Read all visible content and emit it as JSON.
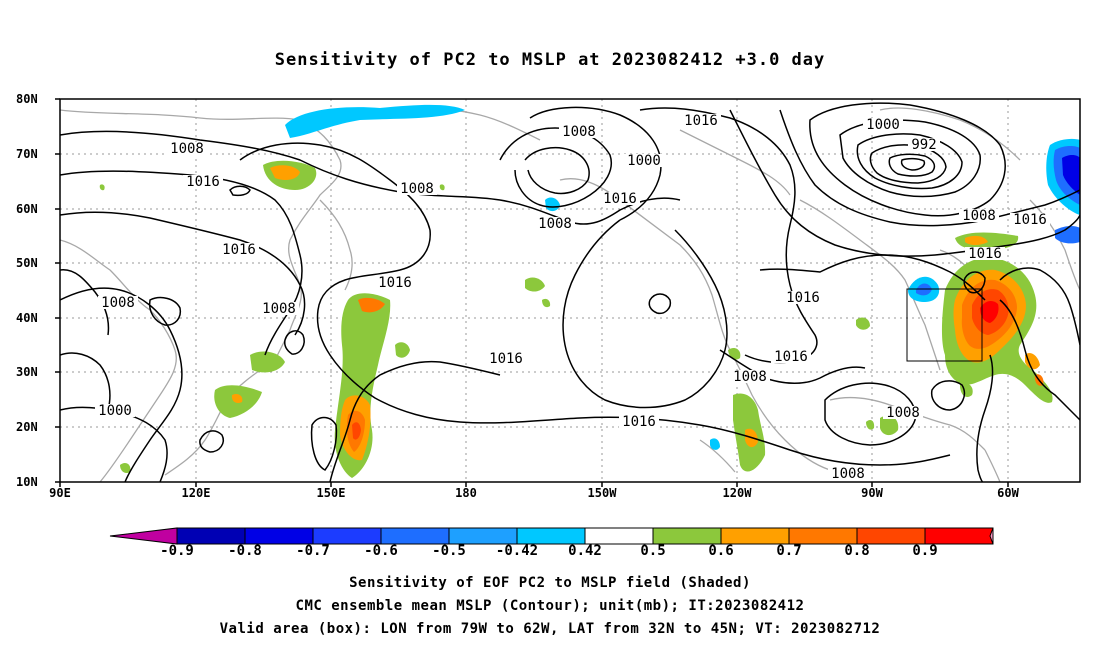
{
  "title": "Sensitivity of PC2 to MSLP at 2023082412 +3.0 day",
  "lat_labels": [
    "80N",
    "70N",
    "60N",
    "50N",
    "40N",
    "30N",
    "20N",
    "10N"
  ],
  "lon_labels": [
    "90E",
    "120E",
    "150E",
    "180",
    "150W",
    "120W",
    "90W",
    "60W"
  ],
  "contour_labels": [
    {
      "text": "1008"
    },
    {
      "text": "1016"
    },
    {
      "text": "1016"
    },
    {
      "text": "1008"
    },
    {
      "text": "1008"
    },
    {
      "text": "1000"
    },
    {
      "text": "1008"
    },
    {
      "text": "1016"
    },
    {
      "text": "1016"
    },
    {
      "text": "1008"
    },
    {
      "text": "1016"
    },
    {
      "text": "1016"
    },
    {
      "text": "1016"
    },
    {
      "text": "1000"
    },
    {
      "text": "992"
    },
    {
      "text": "1008"
    },
    {
      "text": "1016"
    },
    {
      "text": "1016"
    },
    {
      "text": "1016"
    },
    {
      "text": "1016"
    },
    {
      "text": "1008"
    },
    {
      "text": "1008"
    },
    {
      "text": "1008"
    },
    {
      "text": "1008"
    },
    {
      "text": "1000"
    }
  ],
  "colorbar": {
    "colors": [
      "#c000a0",
      "#0000b4",
      "#0000e6",
      "#1c3cff",
      "#1e6eff",
      "#1ea0ff",
      "#00c8ff",
      "#ffffff",
      "#8cc83c",
      "#ffa000",
      "#ff7800",
      "#ff4600",
      "#ff0000",
      "#ff9bc8"
    ],
    "labels": [
      "-0.9",
      "-0.8",
      "-0.7",
      "-0.6",
      "-0.5",
      "-0.42",
      "0.42",
      "0.5",
      "0.6",
      "0.7",
      "0.8",
      "0.9"
    ]
  },
  "captions": [
    "Sensitivity of EOF PC2 to MSLP field (Shaded)",
    "CMC ensemble mean MSLP (Contour); unit(mb); IT:2023082412",
    "Valid area (box): LON from 79W to 62W, LAT from 32N to 45N; VT: 2023082712"
  ]
}
